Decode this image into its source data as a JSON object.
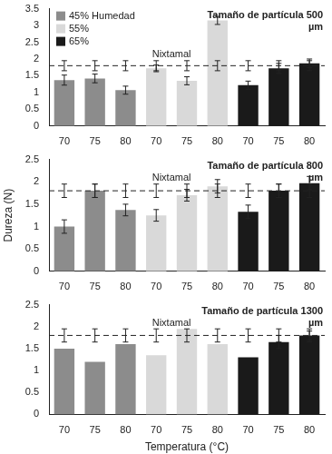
{
  "chart_data": [
    {
      "type": "bar",
      "title": "Tamaño de partícula 500 µm",
      "categories": [
        "70",
        "75",
        "80",
        "70",
        "75",
        "80",
        "70",
        "75",
        "80"
      ],
      "series": [
        {
          "name": "45% Humedad",
          "color": "#8c8c8c",
          "values": [
            1.37,
            1.42,
            1.07,
            null,
            null,
            null,
            null,
            null,
            null
          ],
          "errors": [
            0.15,
            0.13,
            0.12,
            null,
            null,
            null,
            null,
            null,
            null
          ]
        },
        {
          "name": "55%",
          "color": "#d9d9d9",
          "values": [
            null,
            null,
            null,
            1.72,
            1.35,
            3.15,
            null,
            null,
            null
          ],
          "errors": [
            null,
            null,
            null,
            0.1,
            0.12,
            0.12,
            null,
            null,
            null
          ]
        },
        {
          "name": "65%",
          "color": "#1a1a1a",
          "values": [
            null,
            null,
            null,
            null,
            null,
            null,
            1.22,
            1.72,
            1.87
          ],
          "errors": [
            null,
            null,
            null,
            null,
            null,
            null,
            0.12,
            0.15,
            0.13
          ]
        }
      ],
      "reference": {
        "label": "Nixtamal",
        "value": 1.8,
        "error": 0.15
      },
      "ylim": [
        0,
        3.5
      ],
      "yticks": [
        0,
        0.5,
        1,
        1.5,
        2,
        2.5,
        3,
        3.5
      ],
      "legend": "upper left",
      "grid": false
    },
    {
      "type": "bar",
      "title": "Tamaño de partícula 800 µm",
      "ylabel": "Dureza (N)",
      "categories": [
        "70",
        "75",
        "80",
        "70",
        "75",
        "80",
        "70",
        "75",
        "80"
      ],
      "series": [
        {
          "color": "#8c8c8c",
          "values": [
            1.0,
            1.8,
            1.37,
            null,
            null,
            null,
            null,
            null,
            null
          ],
          "errors": [
            0.15,
            0.15,
            0.13,
            null,
            null,
            null,
            null,
            null,
            null
          ]
        },
        {
          "color": "#d9d9d9",
          "values": [
            null,
            null,
            null,
            1.25,
            1.7,
            1.9,
            null,
            null,
            null
          ],
          "errors": [
            null,
            null,
            null,
            0.13,
            0.13,
            0.15,
            null,
            null,
            null
          ]
        },
        {
          "color": "#1a1a1a",
          "values": [
            null,
            null,
            null,
            null,
            null,
            null,
            1.33,
            1.8,
            1.97
          ],
          "errors": [
            null,
            null,
            null,
            null,
            null,
            null,
            0.15,
            0.15,
            0.15
          ]
        }
      ],
      "reference": {
        "label": "Nixtamal",
        "value": 1.8,
        "error": 0.15
      },
      "ylim": [
        0,
        2.5
      ],
      "yticks": [
        0,
        0.5,
        1,
        1.5,
        2,
        2.5
      ],
      "grid": false
    },
    {
      "type": "bar",
      "title": "Tamaño de partícula 1300 µm",
      "xlabel": "Temperatura (°C)",
      "categories": [
        "70",
        "75",
        "80",
        "70",
        "75",
        "80",
        "70",
        "75",
        "80"
      ],
      "series": [
        {
          "color": "#8c8c8c",
          "values": [
            1.5,
            1.2,
            1.6,
            null,
            null,
            null,
            null,
            null,
            null
          ]
        },
        {
          "color": "#d9d9d9",
          "values": [
            null,
            null,
            null,
            1.35,
            1.95,
            1.6,
            null,
            null,
            null
          ]
        },
        {
          "color": "#1a1a1a",
          "values": [
            null,
            null,
            null,
            null,
            null,
            null,
            1.3,
            1.65,
            1.8
          ],
          "errors": [
            null,
            null,
            null,
            null,
            null,
            null,
            null,
            0.15,
            0.1
          ]
        }
      ],
      "reference": {
        "label": "Nixtamal",
        "value": 1.8,
        "error": 0.15
      },
      "ylim": [
        0,
        2.5
      ],
      "yticks": [
        0,
        0.5,
        1,
        1.5,
        2,
        2.5
      ],
      "grid": false
    }
  ]
}
